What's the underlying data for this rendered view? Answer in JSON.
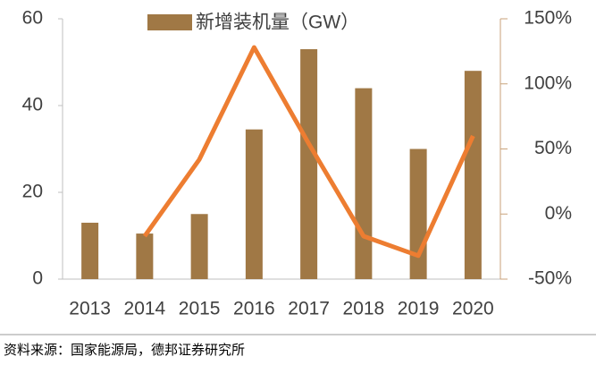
{
  "chart_data": {
    "type": "bar",
    "categories": [
      "2013",
      "2014",
      "2015",
      "2016",
      "2017",
      "2018",
      "2019",
      "2020"
    ],
    "series": [
      {
        "name": "新增装机量（GW）",
        "type": "bar",
        "color": "#a07845",
        "values": [
          13,
          10.5,
          15,
          34.5,
          53,
          44,
          30,
          48
        ]
      },
      {
        "type": "line",
        "axis": "y2",
        "color": "#ed7d31",
        "values": [
          null,
          -17,
          42,
          128,
          54,
          -17,
          -32,
          60
        ]
      }
    ],
    "ylim": [
      0,
      60
    ],
    "yticks": [
      0,
      20,
      40,
      60
    ],
    "y2lim": [
      -50,
      150
    ],
    "y2ticks": [
      {
        "value": -50,
        "label": "-50%"
      },
      {
        "value": 0,
        "label": "0%"
      },
      {
        "value": 50,
        "label": "50%"
      },
      {
        "value": 100,
        "label": "100%"
      },
      {
        "value": 150,
        "label": "150%"
      }
    ],
    "legend": "top",
    "source": "资料来源：国家能源局，德邦证券研究所"
  }
}
